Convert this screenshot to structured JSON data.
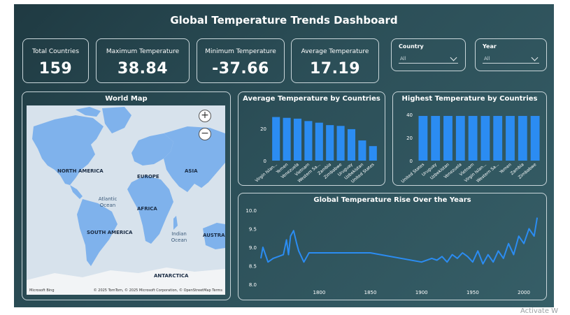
{
  "dashboard": {
    "title": "Global Temperature Trends Dashboard"
  },
  "kpis": [
    {
      "label": "Total Countries",
      "value": "159"
    },
    {
      "label": "Maximum Temperature",
      "value": "38.84"
    },
    {
      "label": "Minimum Temperature",
      "value": "-37.66"
    },
    {
      "label": "Average Temperature",
      "value": "17.19"
    }
  ],
  "slicers": [
    {
      "label": "Country",
      "selected": "All"
    },
    {
      "label": "Year",
      "selected": "All"
    }
  ],
  "map": {
    "title": "World Map",
    "continents": [
      "NORTH AMERICA",
      "EUROPE",
      "ASIA",
      "AFRICA",
      "SOUTH AMERICA",
      "AUSTRAL",
      "ANTARCTICA"
    ],
    "oceans": [
      "Atlantic Ocean",
      "Indian Ocean"
    ],
    "attribution": "© 2025 TomTom, © 2025 Microsoft Corporation, © OpenStreetMap  Terms",
    "brand": "Microsoft Bing",
    "zoom_in": "+",
    "zoom_out": "−",
    "land_color": "#7fb2ec",
    "water_color": "#d7e2ec"
  },
  "colors": {
    "accent": "#2b8cf2"
  },
  "chart_data": [
    {
      "type": "bar",
      "title": "Average Temperature by Countries",
      "categories": [
        "Virgin Islan...",
        "Yemen",
        "Venezuela",
        "Vietnam",
        "Western Sa...",
        "Zambia",
        "Zimbabwe",
        "Uruguay",
        "Uzbekistan",
        "United States"
      ],
      "values": [
        27.0,
        26.5,
        26.0,
        24.5,
        23.5,
        22.0,
        21.5,
        19.5,
        12.5,
        9.0
      ],
      "ylim": [
        0,
        32
      ],
      "yticks": [
        "0",
        "20"
      ],
      "ytick_values": [
        0,
        20
      ]
    },
    {
      "type": "bar",
      "title": "Highest Temperature by Countries",
      "categories": [
        "United States",
        "Uruguay",
        "Uzbekistan",
        "Venezuela",
        "Vietnam",
        "Virgin Islan...",
        "Western Sa...",
        "Yemen",
        "Zambia",
        "Zimbabwe"
      ],
      "values": [
        38.8,
        38.8,
        38.8,
        38.8,
        38.8,
        38.8,
        38.8,
        38.8,
        38.8,
        38.8
      ],
      "ylim": [
        0,
        40
      ],
      "yticks": [
        "0",
        "20",
        "40"
      ],
      "ytick_values": [
        0,
        20,
        40
      ]
    },
    {
      "type": "line",
      "title": "Global Temperature Rise Over the Years",
      "xlim": [
        1743,
        2015
      ],
      "ylim": [
        8.0,
        10.0
      ],
      "xticks": [
        "1800",
        "1850",
        "1900",
        "1950",
        "2000"
      ],
      "xtick_values": [
        1800,
        1850,
        1900,
        1950,
        2000
      ],
      "yticks": [
        "8.0",
        "8.5",
        "9.0",
        "9.5",
        "10.0"
      ],
      "ytick_values": [
        8.0,
        8.5,
        9.0,
        9.5,
        10.0
      ],
      "x": [
        1743,
        1745,
        1750,
        1755,
        1760,
        1765,
        1768,
        1770,
        1772,
        1775,
        1778,
        1780,
        1785,
        1790,
        1795,
        1800,
        1850,
        1900,
        1910,
        1915,
        1920,
        1925,
        1930,
        1935,
        1940,
        1945,
        1950,
        1955,
        1960,
        1965,
        1970,
        1975,
        1980,
        1985,
        1990,
        1995,
        2000,
        2005,
        2010,
        2013
      ],
      "y": [
        8.7,
        9.0,
        8.6,
        8.7,
        8.75,
        8.8,
        9.2,
        8.8,
        9.3,
        9.45,
        9.1,
        8.9,
        8.6,
        8.85,
        8.85,
        8.85,
        8.85,
        8.6,
        8.7,
        8.65,
        8.75,
        8.6,
        8.8,
        8.7,
        8.85,
        8.75,
        8.6,
        8.9,
        8.55,
        8.8,
        8.6,
        8.9,
        8.7,
        9.1,
        8.8,
        9.3,
        9.1,
        9.5,
        9.3,
        9.8
      ]
    }
  ],
  "watermark": "Activate W"
}
